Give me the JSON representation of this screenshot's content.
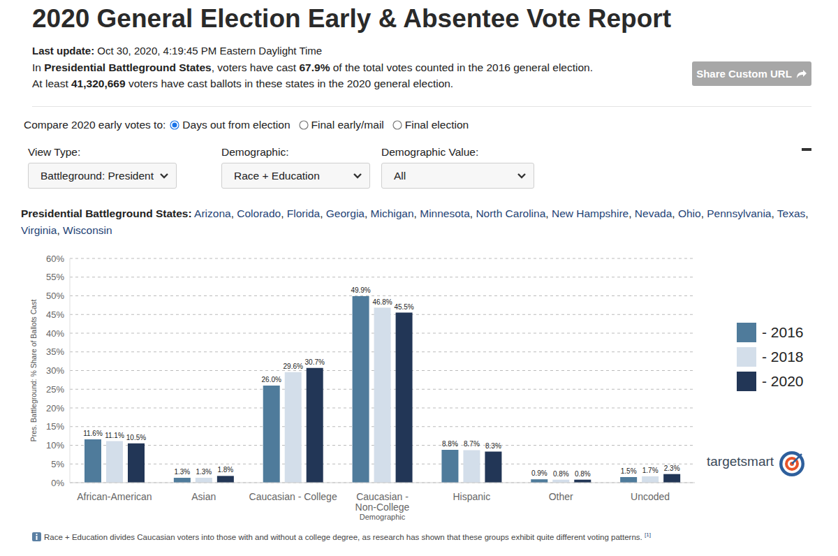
{
  "header": {
    "title": "2020 General Election Early & Absentee Vote Report",
    "last_update_label": "Last update:",
    "last_update": "Oct 30, 2020, 4:19:45 PM Eastern Daylight Time",
    "lines": [
      [
        {
          "text": "In ",
          "bold": false
        },
        {
          "text": "Presidential Battleground States",
          "bold": true
        },
        {
          "text": ", voters have cast ",
          "bold": false
        },
        {
          "text": "67.9%",
          "bold": true
        },
        {
          "text": " of the total votes counted in the 2016 general election.",
          "bold": false
        }
      ],
      [
        {
          "text": "At least ",
          "bold": false
        },
        {
          "text": "41,320,669",
          "bold": true
        },
        {
          "text": " voters have cast ballots in these states in the 2020 general election.",
          "bold": false
        }
      ]
    ],
    "share_button": "Share Custom URL"
  },
  "controls": {
    "compare_label": "Compare 2020 early votes to:",
    "compare_options": [
      "Days out from election",
      "Final early/mail",
      "Final election"
    ],
    "compare_selected": 0,
    "dropdowns": [
      {
        "label": "View Type:",
        "value": "Battleground: President"
      },
      {
        "label": "Demographic:",
        "value": "Race + Education"
      },
      {
        "label": "Demographic Value:",
        "value": "All"
      }
    ]
  },
  "states": {
    "label": "Presidential Battleground States:",
    "separator": ", ",
    "list": [
      "Arizona",
      "Colorado",
      "Florida",
      "Georgia",
      "Michigan",
      "Minnesota",
      "North Carolina",
      "New Hampshire",
      "Nevada",
      "Ohio",
      "Pennsylvania",
      "Texas",
      "Virginia",
      "Wisconsin"
    ]
  },
  "logo": "targetsmart",
  "footnote": {
    "text": "Race + Education divides Caucasian voters into those with and without a college degree, as research has shown that these groups exhibit quite different voting patterns.",
    "ref": "[1]"
  },
  "chart_data": {
    "type": "bar",
    "x_label": "Demographic",
    "y_label": "Pres. Battleground: % Share of Ballots Cast",
    "categories": [
      "African-American",
      "Asian",
      "Caucasian - College",
      "Caucasian - Non-College",
      "Hispanic",
      "Other",
      "Uncoded"
    ],
    "series": [
      {
        "name": "- 2016",
        "color": "#4f7b9b",
        "values": [
          11.6,
          1.3,
          26.0,
          49.9,
          8.8,
          0.9,
          1.5
        ],
        "value_labels": [
          "11.6%",
          "1.3%",
          "26.0%",
          "49.9%",
          "8.8%",
          "0.9%",
          "1.5%"
        ]
      },
      {
        "name": "- 2018",
        "color": "#d3deea",
        "values": [
          11.1,
          1.3,
          29.6,
          46.8,
          8.7,
          0.8,
          1.7
        ],
        "value_labels": [
          "11.1%",
          "1.3%",
          "29.6%",
          "46.8%",
          "8.7%",
          "0.8%",
          "1.7%"
        ]
      },
      {
        "name": "- 2020",
        "color": "#223656",
        "values": [
          10.5,
          1.8,
          30.7,
          45.5,
          8.3,
          0.8,
          2.3
        ],
        "value_labels": [
          "10.5%",
          "1.8%",
          "30.7%",
          "45.5%",
          "8.3%",
          "0.8%",
          "2.3%"
        ]
      }
    ],
    "ylim": [
      0,
      60
    ],
    "yticks": [
      {
        "value": 0,
        "label": "0%"
      },
      {
        "value": 5,
        "label": "5%"
      },
      {
        "value": 10,
        "label": "10%"
      },
      {
        "value": 15,
        "label": "15%"
      },
      {
        "value": 20,
        "label": "20%"
      },
      {
        "value": 25,
        "label": "25%"
      },
      {
        "value": 30,
        "label": "30%"
      },
      {
        "value": 35,
        "label": "35%"
      },
      {
        "value": 40,
        "label": "40%"
      },
      {
        "value": 45,
        "label": "45%"
      },
      {
        "value": 50,
        "label": "50%"
      },
      {
        "value": 55,
        "label": "55%"
      },
      {
        "value": 60,
        "label": "60%"
      }
    ],
    "grid": true,
    "data_labels": true,
    "legend": "right"
  }
}
